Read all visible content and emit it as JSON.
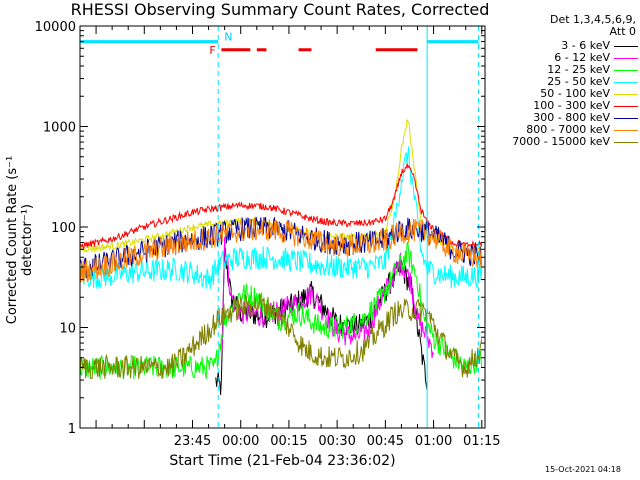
{
  "title": "RHESSI Observing Summary Count Rates, Corrected",
  "detector": {
    "line1": "Det 1,3,4,5,6,9,",
    "line2": "Att 0"
  },
  "timestamp": "15-Oct-2021 04:18",
  "flag_labels": {
    "flare": "F",
    "night": "N"
  },
  "chart_data": {
    "type": "line",
    "title": "RHESSI Observing Summary Count Rates, Corrected",
    "xlabel": "Start Time (21-Feb-04 23:36:02)",
    "ylabel": "Corrected Count Rate (s⁻¹ detector⁻¹)",
    "yscale": "log",
    "ylim": [
      1,
      10000
    ],
    "xlim_minutes": [
      -50,
      76
    ],
    "y_ticks": [
      "1",
      "10",
      "100",
      "1000",
      "10000"
    ],
    "x_ticks": [
      {
        "t": -15,
        "label": "23:45"
      },
      {
        "t": 0,
        "label": "00:00"
      },
      {
        "t": 15,
        "label": "00:15"
      },
      {
        "t": 30,
        "label": "00:30"
      },
      {
        "t": 45,
        "label": "00:45"
      },
      {
        "t": 60,
        "label": "01:00"
      },
      {
        "t": 75,
        "label": "01:15"
      }
    ],
    "night_intervals": [
      [
        -50,
        -7
      ],
      [
        58,
        74
      ]
    ],
    "night_level": 7000,
    "flare_intervals": [
      [
        -6,
        3
      ],
      [
        5,
        8
      ],
      [
        18,
        22
      ],
      [
        42,
        55
      ]
    ],
    "flare_level": 5800,
    "day_night_lines_min": [
      -7,
      58,
      74
    ],
    "series": [
      {
        "name": "3 - 6 keV",
        "color": "#000000",
        "t": [
          -50,
          -25,
          -12,
          -8,
          -6,
          -5,
          -3,
          0,
          8,
          15,
          22,
          30,
          36,
          40,
          44,
          47,
          50,
          53,
          55,
          57,
          58,
          60,
          66,
          73,
          75
        ],
        "values": [
          null,
          null,
          null,
          3,
          2.5,
          60,
          20,
          14,
          13,
          16,
          22,
          11,
          10,
          12,
          20,
          30,
          40,
          25,
          10,
          4,
          3,
          null,
          null,
          null,
          null
        ]
      },
      {
        "name": "6 - 12 keV",
        "color": "#ff00ff",
        "t": [
          -50,
          -12,
          -8,
          -6,
          -5,
          -3,
          0,
          8,
          15,
          22,
          30,
          36,
          40,
          44,
          47,
          50,
          53,
          55,
          58,
          60,
          66,
          73,
          75
        ],
        "values": [
          null,
          null,
          null,
          3,
          80,
          20,
          14,
          13,
          16,
          22,
          9,
          8,
          10,
          20,
          30,
          45,
          28,
          12,
          8,
          6,
          null,
          null,
          null
        ]
      },
      {
        "name": "12 - 25 keV",
        "color": "#00ff00",
        "t": [
          -50,
          -40,
          -30,
          -20,
          -12,
          -8,
          -5,
          0,
          5,
          12,
          18,
          25,
          32,
          38,
          44,
          48,
          52,
          55,
          57,
          60,
          66,
          70,
          75
        ],
        "values": [
          4,
          4,
          4,
          4,
          4,
          4,
          12,
          22,
          20,
          12,
          14,
          10,
          10,
          12,
          20,
          35,
          55,
          30,
          12,
          8,
          5,
          4,
          5
        ]
      },
      {
        "name": "25 - 50 keV",
        "color": "#00ffff",
        "t": [
          -50,
          -44,
          -40,
          -35,
          -30,
          -25,
          -20,
          -15,
          -10,
          -6,
          0,
          8,
          15,
          22,
          28,
          35,
          40,
          45,
          48,
          50,
          52,
          54,
          56,
          58,
          62,
          66,
          70,
          75
        ],
        "values": [
          32,
          32,
          33,
          35,
          36,
          37,
          38,
          35,
          30,
          45,
          50,
          50,
          47,
          43,
          40,
          40,
          40,
          45,
          120,
          300,
          550,
          200,
          60,
          38,
          34,
          32,
          32,
          33
        ]
      },
      {
        "name": "50 - 100 keV",
        "color": "#dddd00",
        "t": [
          -50,
          -44,
          -38,
          -32,
          -26,
          -20,
          -15,
          -10,
          -5,
          0,
          8,
          15,
          22,
          28,
          34,
          40,
          45,
          48,
          50,
          52,
          54,
          56,
          58,
          62,
          66,
          70,
          75
        ],
        "values": [
          60,
          62,
          66,
          72,
          80,
          90,
          100,
          105,
          110,
          115,
          110,
          95,
          85,
          80,
          80,
          82,
          90,
          200,
          600,
          1200,
          400,
          120,
          85,
          70,
          62,
          60,
          62
        ]
      },
      {
        "name": "100 - 300 keV",
        "color": "#ff0000",
        "t": [
          -50,
          -44,
          -38,
          -32,
          -26,
          -20,
          -15,
          -10,
          -5,
          0,
          8,
          15,
          22,
          28,
          34,
          40,
          45,
          48,
          50,
          52,
          54,
          56,
          58,
          62,
          66,
          70,
          75
        ],
        "values": [
          65,
          70,
          80,
          95,
          110,
          125,
          140,
          150,
          158,
          165,
          160,
          140,
          120,
          110,
          108,
          110,
          120,
          200,
          350,
          400,
          300,
          150,
          110,
          85,
          70,
          65,
          68
        ]
      },
      {
        "name": "300 - 800 keV",
        "color": "#000099",
        "t": [
          -50,
          -44,
          -38,
          -32,
          -26,
          -20,
          -15,
          -10,
          -5,
          0,
          8,
          15,
          22,
          28,
          34,
          40,
          45,
          50,
          55,
          58,
          62,
          66,
          70,
          75
        ],
        "values": [
          38,
          42,
          48,
          55,
          62,
          70,
          75,
          80,
          88,
          95,
          97,
          90,
          78,
          70,
          68,
          70,
          75,
          95,
          95,
          90,
          75,
          60,
          55,
          50
        ]
      },
      {
        "name": "800 - 7000 keV",
        "color": "#ff8000",
        "t": [
          -50,
          -44,
          -38,
          -32,
          -26,
          -20,
          -15,
          -10,
          -5,
          0,
          8,
          15,
          22,
          28,
          34,
          40,
          45,
          50,
          55,
          58,
          62,
          66,
          70,
          75
        ],
        "values": [
          36,
          40,
          45,
          52,
          60,
          67,
          72,
          78,
          85,
          92,
          95,
          88,
          75,
          67,
          65,
          67,
          72,
          90,
          92,
          87,
          72,
          57,
          52,
          48
        ]
      },
      {
        "name": "7000 - 15000 keV",
        "color": "#808000",
        "t": [
          -50,
          -40,
          -30,
          -22,
          -18,
          -12,
          -6,
          0,
          6,
          10,
          15,
          20,
          26,
          32,
          38,
          44,
          48,
          52,
          56,
          58,
          62,
          66,
          70,
          75
        ],
        "values": [
          4,
          4,
          4,
          4,
          5,
          8,
          13,
          16,
          17,
          15,
          10,
          6,
          5,
          5,
          6,
          10,
          14,
          15,
          15,
          14,
          8,
          5,
          4,
          6
        ]
      }
    ]
  }
}
